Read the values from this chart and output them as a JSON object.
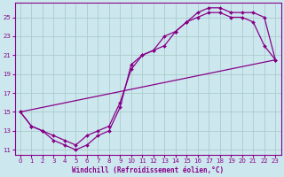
{
  "xlabel": "Windchill (Refroidissement éolien,°C)",
  "line1_x": [
    0,
    1,
    2,
    3,
    4,
    5,
    6,
    7,
    8,
    9,
    10,
    11,
    12,
    13,
    14,
    15,
    16,
    17,
    18,
    19,
    20,
    21,
    22,
    23
  ],
  "line1_y": [
    15.0,
    13.5,
    13.0,
    12.0,
    11.5,
    11.0,
    11.5,
    12.5,
    13.0,
    15.5,
    20.0,
    21.0,
    21.5,
    23.0,
    23.5,
    24.5,
    25.0,
    25.5,
    25.5,
    25.0,
    25.0,
    24.5,
    22.0,
    20.5
  ],
  "line2_x": [
    0,
    1,
    2,
    3,
    4,
    5,
    6,
    7,
    8,
    9,
    10,
    11,
    12,
    13,
    14,
    15,
    16,
    17,
    18,
    19,
    20,
    21,
    22,
    23
  ],
  "line2_y": [
    15.0,
    13.5,
    13.0,
    12.5,
    12.0,
    11.5,
    12.5,
    13.0,
    13.5,
    16.0,
    19.5,
    21.0,
    21.5,
    22.0,
    23.5,
    24.5,
    25.5,
    26.0,
    26.0,
    25.5,
    25.5,
    25.5,
    25.0,
    20.5
  ],
  "line3_x": [
    0,
    23
  ],
  "line3_y": [
    15.0,
    20.5
  ],
  "xlim": [
    -0.5,
    23.5
  ],
  "ylim": [
    10.5,
    26.5
  ],
  "xticks": [
    0,
    1,
    2,
    3,
    4,
    5,
    6,
    7,
    8,
    9,
    10,
    11,
    12,
    13,
    14,
    15,
    16,
    17,
    18,
    19,
    20,
    21,
    22,
    23
  ],
  "yticks": [
    11,
    13,
    15,
    17,
    19,
    21,
    23,
    25
  ],
  "bg_color": "#cce8ee",
  "grid_color": "#aacccc",
  "line_color": "#880088",
  "marker": "D",
  "marker_size": 2.0,
  "line_width": 0.9,
  "tick_fontsize": 5.0,
  "xlabel_fontsize": 5.5
}
